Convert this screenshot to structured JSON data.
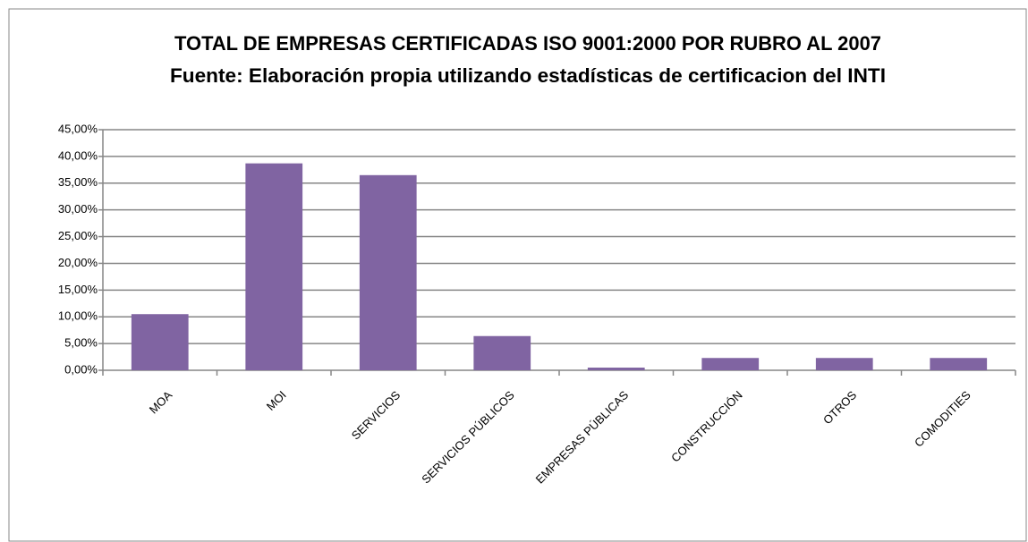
{
  "chart_data": {
    "type": "bar",
    "title": "TOTAL DE EMPRESAS CERTIFICADAS ISO 9001:2000 POR RUBRO AL 2007",
    "subtitle": "Fuente: Elaboración propia utilizando estadísticas de certificacion del INTI",
    "categories": [
      "MOA",
      "MOI",
      "SERVICIOS",
      "SERVICIOS PÚBLICOS",
      "EMPRESAS PÚBLICAS",
      "CONSTRUCCIÓN",
      "OTROS",
      "COMODITIES"
    ],
    "values": [
      10.5,
      38.7,
      36.5,
      6.4,
      0.5,
      2.3,
      2.3,
      2.3
    ],
    "color": "#8064a2",
    "ylim": [
      0,
      45
    ],
    "yticks": [
      {
        "value": 0,
        "label": "0,00%"
      },
      {
        "value": 5,
        "label": "5,00%"
      },
      {
        "value": 10,
        "label": "10,00%"
      },
      {
        "value": 15,
        "label": "15,00%"
      },
      {
        "value": 20,
        "label": "20,00%"
      },
      {
        "value": 25,
        "label": "25,00%"
      },
      {
        "value": 30,
        "label": "30,00%"
      },
      {
        "value": 35,
        "label": "35,00%"
      },
      {
        "value": 40,
        "label": "40,00%"
      },
      {
        "value": 45,
        "label": "45,00%"
      }
    ],
    "grid": true
  }
}
